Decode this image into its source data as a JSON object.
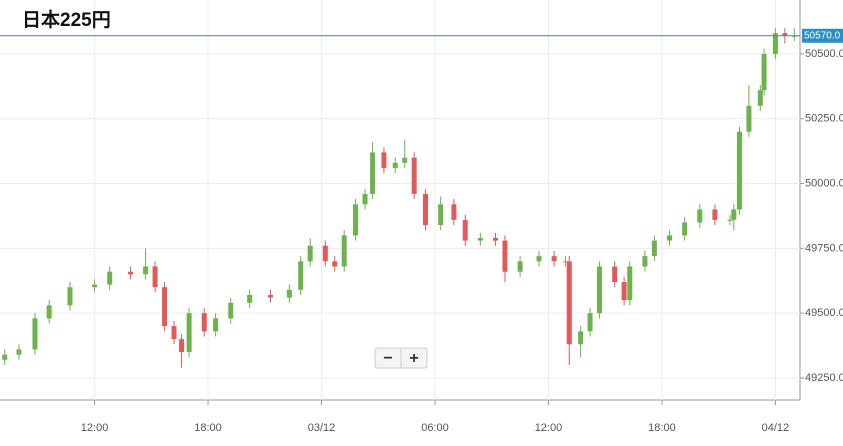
{
  "chart_data": {
    "type": "candlestick",
    "title": "日本225円",
    "x": [
      7.25,
      8,
      8.85,
      9.6,
      10.7,
      12,
      12.8,
      13.9,
      14.7,
      15.2,
      15.7,
      16.2,
      16.6,
      17,
      17.8,
      18.4,
      19.2,
      20.2,
      21.3,
      22.3,
      22.9,
      23.4,
      24.2,
      24.7,
      25.2,
      25.8,
      26.3,
      26.7,
      27.3,
      27.9,
      28.4,
      28.9,
      29.5,
      30.3,
      31,
      31.6,
      32.4,
      33.2,
      33.7,
      34.5,
      35.5,
      36.3,
      36.9,
      37.1,
      37.7,
      38.2,
      38.7,
      39.5,
      40,
      40.3,
      41.1,
      41.6,
      42.4,
      43.2,
      44,
      44.8,
      45.6,
      45.8,
      46.1,
      46.6,
      47.2,
      47.4,
      48,
      48.5,
      49
    ],
    "open": [
      49320,
      49340,
      49360,
      49480,
      49530,
      49600,
      49610,
      49660,
      49650,
      49680,
      49600,
      49450,
      49400,
      49350,
      49500,
      49430,
      49480,
      49540,
      49570,
      49560,
      49590,
      49700,
      49760,
      49700,
      49680,
      49800,
      49920,
      49960,
      50120,
      50060,
      50080,
      50100,
      49960,
      49840,
      49920,
      49860,
      49780,
      49790,
      49780,
      49660,
      49700,
      49720,
      49700,
      49700,
      49380,
      49430,
      49500,
      49680,
      49620,
      49550,
      49680,
      49720,
      49780,
      49800,
      49850,
      49900,
      49860,
      49860,
      49900,
      50200,
      50300,
      50360,
      50500,
      50580,
      50570
    ],
    "high": [
      49360,
      49380,
      49500,
      49550,
      49620,
      49630,
      49680,
      49680,
      49750,
      49700,
      49620,
      49470,
      49420,
      49520,
      49520,
      49500,
      49560,
      49590,
      49590,
      49610,
      49720,
      49790,
      49780,
      49720,
      49820,
      49940,
      49980,
      50160,
      50140,
      50100,
      50170,
      50120,
      49980,
      49950,
      49940,
      49880,
      49810,
      49810,
      49800,
      49720,
      49740,
      49740,
      49720,
      49720,
      49450,
      49520,
      49700,
      49700,
      49640,
      49700,
      49740,
      49800,
      49820,
      49870,
      49920,
      49920,
      49880,
      49920,
      50220,
      50380,
      50380,
      50520,
      50600,
      50600,
      50600
    ],
    "low": [
      49300,
      49320,
      49340,
      49460,
      49510,
      49580,
      49590,
      49630,
      49630,
      49580,
      49430,
      49380,
      49290,
      49330,
      49410,
      49410,
      49460,
      49520,
      49540,
      49540,
      49570,
      49680,
      49680,
      49660,
      49660,
      49780,
      49900,
      49940,
      50040,
      50040,
      50060,
      49940,
      49820,
      49820,
      49840,
      49760,
      49760,
      49760,
      49620,
      49640,
      49680,
      49680,
      49680,
      49300,
      49330,
      49410,
      49480,
      49600,
      49530,
      49530,
      49660,
      49700,
      49760,
      49780,
      49830,
      49840,
      49840,
      49820,
      49880,
      50180,
      50280,
      50340,
      50480,
      50540,
      50550
    ],
    "close": [
      49340,
      49360,
      49480,
      49530,
      49600,
      49610,
      49660,
      49650,
      49680,
      49600,
      49450,
      49400,
      49350,
      49500,
      49430,
      49480,
      49540,
      49570,
      49560,
      49590,
      49700,
      49760,
      49700,
      49680,
      49800,
      49920,
      49960,
      50120,
      50060,
      50080,
      50100,
      49960,
      49840,
      49920,
      49860,
      49780,
      49790,
      49780,
      49660,
      49700,
      49720,
      49700,
      49700,
      49380,
      49430,
      49500,
      49680,
      49620,
      49550,
      49680,
      49720,
      49780,
      49800,
      49850,
      49900,
      49860,
      49860,
      49900,
      50200,
      50300,
      50360,
      50500,
      50580,
      50570,
      50570
    ],
    "up_color": "#6cb24d",
    "down_color": "#e05a5a",
    "xlim": [
      7,
      49.3
    ],
    "xticks": [
      {
        "value": 12,
        "label": "12:00"
      },
      {
        "value": 18,
        "label": "18:00"
      },
      {
        "value": 24,
        "label": "03/12"
      },
      {
        "value": 30,
        "label": "06:00"
      },
      {
        "value": 36,
        "label": "12:00"
      },
      {
        "value": 42,
        "label": "18:00"
      },
      {
        "value": 48,
        "label": "04/12"
      }
    ],
    "ylim": [
      49165,
      50708
    ],
    "yticks": [
      {
        "value": 49250,
        "label": "49250.0"
      },
      {
        "value": 49500,
        "label": "49500.0"
      },
      {
        "value": 49750,
        "label": "49750.0"
      },
      {
        "value": 50000,
        "label": "50000.0"
      },
      {
        "value": 50250,
        "label": "50250.0"
      },
      {
        "value": 50500,
        "label": "50500.0"
      }
    ],
    "grid": true,
    "last_price": {
      "value": 50570,
      "label": "50570.0",
      "color": "#2a8fc4"
    },
    "zoom_out": "−",
    "zoom_in": "+"
  }
}
